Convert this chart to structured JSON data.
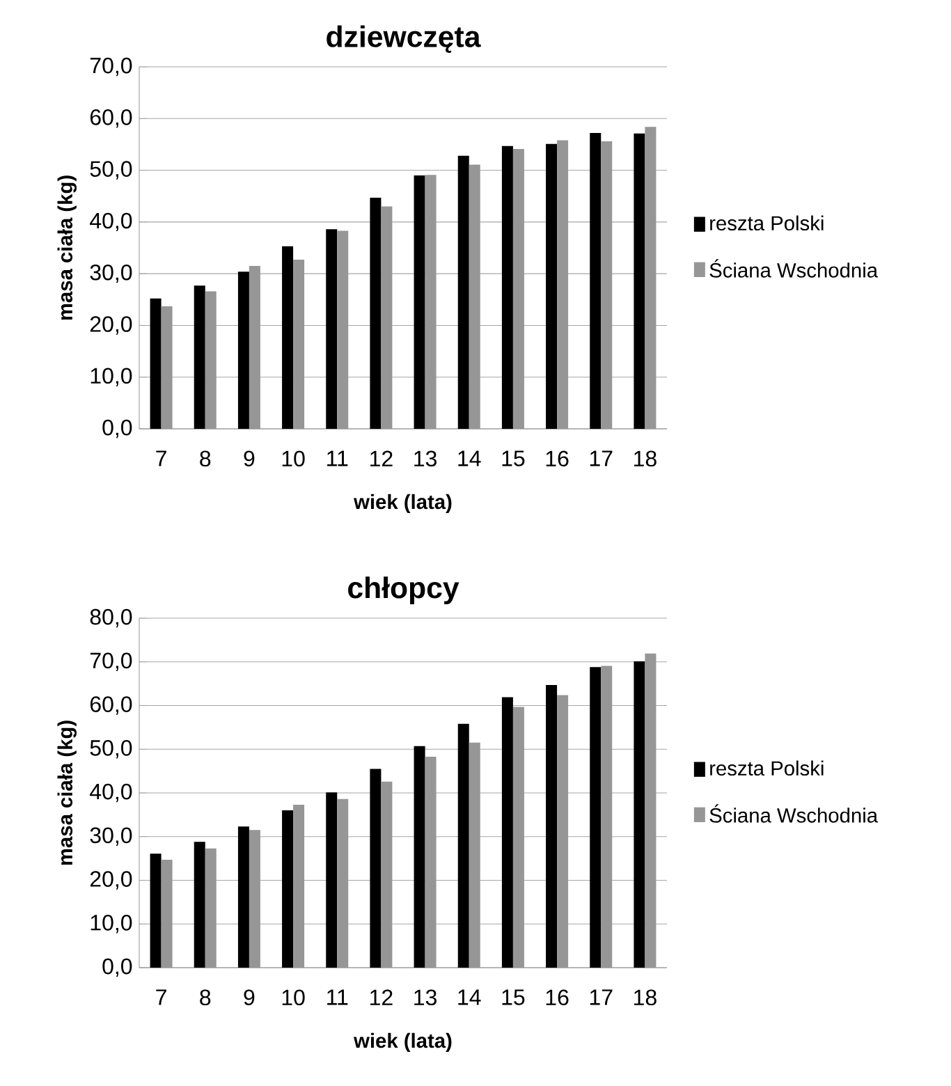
{
  "chart_data": [
    {
      "type": "bar",
      "title": "dziewczęta",
      "xlabel": "wiek (lata)",
      "ylabel": "masa ciała (kg)",
      "categories": [
        "7",
        "8",
        "9",
        "10",
        "11",
        "12",
        "13",
        "14",
        "15",
        "16",
        "17",
        "18"
      ],
      "series": [
        {
          "name": "reszta Polski",
          "color": "#000000",
          "values": [
            25.2,
            27.7,
            30.4,
            35.3,
            38.6,
            44.7,
            49.0,
            52.8,
            54.7,
            55.1,
            57.2,
            57.1
          ]
        },
        {
          "name": "Ściana Wschodnia",
          "color": "#969696",
          "values": [
            23.7,
            26.6,
            31.5,
            32.7,
            38.3,
            43.0,
            49.1,
            51.1,
            54.1,
            55.8,
            55.6,
            58.4
          ]
        }
      ],
      "ylim": [
        0,
        70
      ],
      "yticks": [
        {
          "value": 0,
          "label": "0,0"
        },
        {
          "value": 10,
          "label": "10,0"
        },
        {
          "value": 20,
          "label": "20,0"
        },
        {
          "value": 30,
          "label": "30,0"
        },
        {
          "value": 40,
          "label": "40,0"
        },
        {
          "value": 50,
          "label": "50,0"
        },
        {
          "value": 60,
          "label": "60,0"
        },
        {
          "value": 70,
          "label": "70,0"
        }
      ],
      "grid": "y",
      "legend": "right"
    },
    {
      "type": "bar",
      "title": "chłopcy",
      "xlabel": "wiek (lata)",
      "ylabel": "masa ciała (kg)",
      "categories": [
        "7",
        "8",
        "9",
        "10",
        "11",
        "12",
        "13",
        "14",
        "15",
        "16",
        "17",
        "18"
      ],
      "series": [
        {
          "name": "reszta Polski",
          "color": "#000000",
          "values": [
            26.1,
            28.8,
            32.3,
            36.0,
            40.1,
            45.5,
            50.7,
            55.8,
            61.9,
            64.7,
            68.8,
            70.1
          ]
        },
        {
          "name": "Ściana Wschodnia",
          "color": "#969696",
          "values": [
            24.7,
            27.3,
            31.5,
            37.3,
            38.6,
            42.6,
            48.3,
            51.5,
            59.7,
            62.4,
            69.1,
            71.9
          ]
        }
      ],
      "ylim": [
        0,
        80
      ],
      "yticks": [
        {
          "value": 0,
          "label": "0,0"
        },
        {
          "value": 10,
          "label": "10,0"
        },
        {
          "value": 20,
          "label": "20,0"
        },
        {
          "value": 30,
          "label": "30,0"
        },
        {
          "value": 40,
          "label": "40,0"
        },
        {
          "value": 50,
          "label": "50,0"
        },
        {
          "value": 60,
          "label": "60,0"
        },
        {
          "value": 70,
          "label": "70,0"
        },
        {
          "value": 80,
          "label": "80,0"
        }
      ],
      "grid": "y",
      "legend": "right"
    }
  ]
}
